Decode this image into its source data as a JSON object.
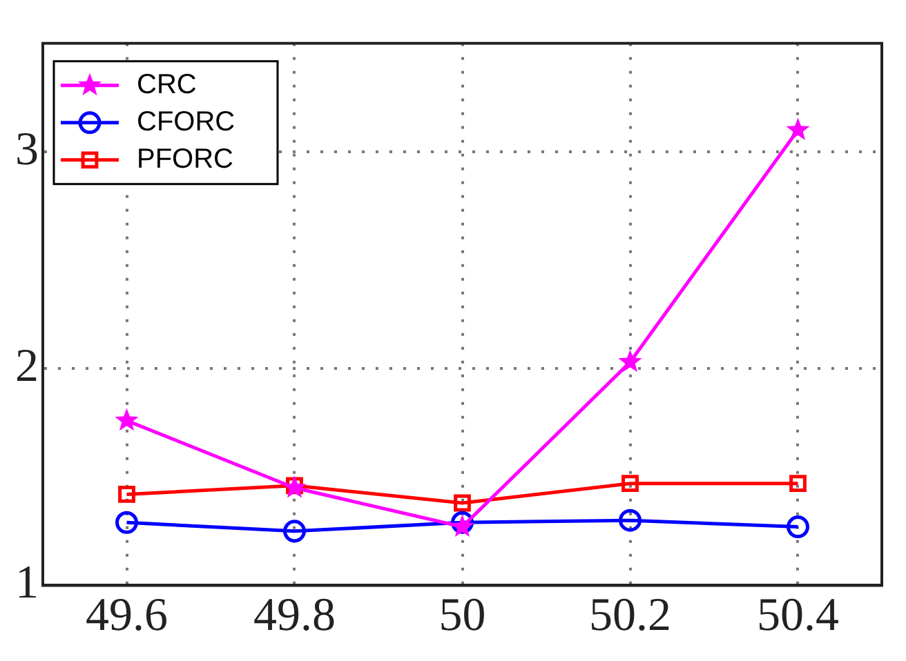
{
  "chart_data": {
    "type": "line",
    "x": [
      49.6,
      49.8,
      50,
      50.2,
      50.4
    ],
    "series": [
      {
        "name": "CRC",
        "color": "#ff00ff",
        "marker": "star",
        "values": [
          1.76,
          1.45,
          1.27,
          2.03,
          3.1
        ]
      },
      {
        "name": "CFORC",
        "color": "#0000ff",
        "marker": "circle",
        "values": [
          1.29,
          1.25,
          1.29,
          1.3,
          1.27
        ]
      },
      {
        "name": "PFORC",
        "color": "#ff0000",
        "marker": "square",
        "values": [
          1.42,
          1.46,
          1.38,
          1.47,
          1.47
        ]
      }
    ],
    "xlim": [
      49.5,
      50.5
    ],
    "xticks": [
      49.6,
      49.8,
      50,
      50.2,
      50.4
    ],
    "ylim": [
      1,
      3.5
    ],
    "yticks": [
      1,
      2,
      3
    ],
    "grid": true,
    "legend": "top left",
    "line_style": "solid"
  }
}
